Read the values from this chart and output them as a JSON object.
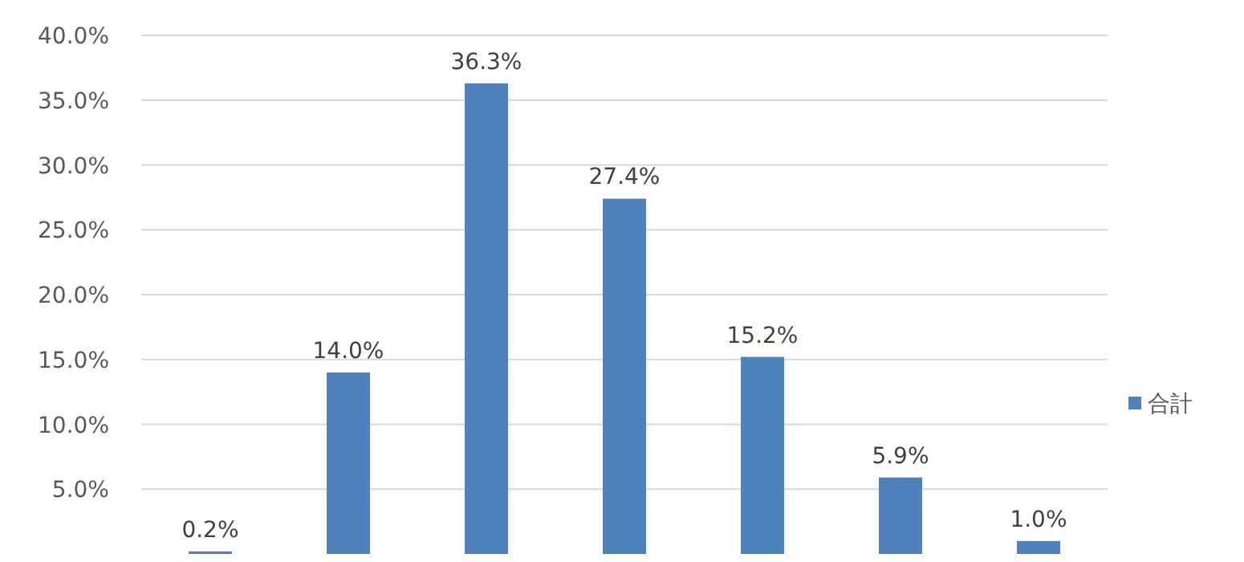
{
  "chart_data": {
    "type": "bar",
    "categories": [
      null,
      null,
      null,
      null,
      null,
      null,
      null
    ],
    "series": [
      {
        "name": "合計",
        "color": "#4f81bd",
        "values": [
          0.2,
          14.0,
          36.3,
          27.4,
          15.2,
          5.9,
          1.0
        ],
        "value_labels": [
          "0.2%",
          "14.0%",
          "36.3%",
          "27.4%",
          "15.2%",
          "5.9%",
          "1.0%"
        ]
      }
    ],
    "ylim": [
      0,
      40
    ],
    "yticks": [
      {
        "value": 5,
        "label": "5.0%"
      },
      {
        "value": 10,
        "label": "10.0%"
      },
      {
        "value": 15,
        "label": "15.0%"
      },
      {
        "value": 20,
        "label": "20.0%"
      },
      {
        "value": 25,
        "label": "25.0%"
      },
      {
        "value": 30,
        "label": "30.0%"
      },
      {
        "value": 35,
        "label": "35.0%"
      },
      {
        "value": 40,
        "label": "40.0%"
      }
    ],
    "grid": "y",
    "legend": "right"
  }
}
